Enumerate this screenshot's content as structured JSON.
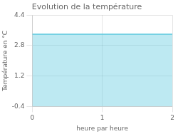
{
  "chart_data": {
    "type": "area",
    "title": "Evolution de la température",
    "xlabel": "heure par heure",
    "ylabel": "Température en °C",
    "x": [
      0,
      2
    ],
    "values": [
      3.4,
      3.4
    ],
    "color": "#5bc8de",
    "xlim": [
      0,
      2
    ],
    "ylim": [
      -0.4,
      4.4
    ],
    "xticks": [
      0,
      1,
      2
    ],
    "yticks": [
      -0.4,
      1.2,
      2.8,
      4.4
    ],
    "grid": true
  }
}
